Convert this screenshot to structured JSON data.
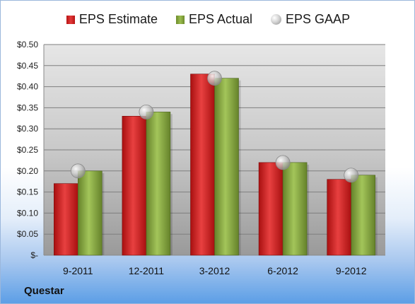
{
  "company": "Questar",
  "legend": {
    "estimate": "EPS Estimate",
    "actual": "EPS Actual",
    "gaap": "EPS GAAP"
  },
  "colors": {
    "estimate": "#d42a2a",
    "actual": "#8aae42",
    "gaap": "#c8c8c8"
  },
  "chart_data": {
    "type": "bar",
    "categories": [
      "9-2011",
      "12-2011",
      "3-2012",
      "6-2012",
      "9-2012"
    ],
    "series": [
      {
        "name": "EPS Estimate",
        "values": [
          0.17,
          0.33,
          0.43,
          0.22,
          0.18
        ]
      },
      {
        "name": "EPS Actual",
        "values": [
          0.2,
          0.34,
          0.42,
          0.22,
          0.19
        ]
      },
      {
        "name": "EPS GAAP",
        "values": [
          0.2,
          0.34,
          0.42,
          0.22,
          0.19
        ]
      }
    ],
    "yticks": [
      "$-",
      "$0.05",
      "$0.10",
      "$0.15",
      "$0.20",
      "$0.25",
      "$0.30",
      "$0.35",
      "$0.40",
      "$0.45",
      "$0.50"
    ],
    "ylim": [
      0,
      0.5
    ],
    "grid": true,
    "legend_position": "top"
  }
}
